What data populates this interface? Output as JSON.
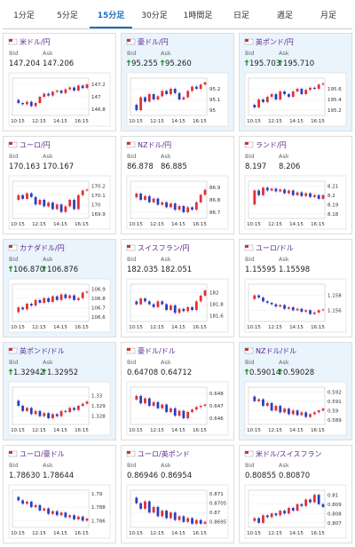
{
  "tabs": [
    "1分足",
    "5分足",
    "15分足",
    "30分足",
    "1時間足",
    "日足",
    "週足",
    "月足"
  ],
  "active_tab": 2,
  "bid_label": "Bid",
  "ask_label": "Ask",
  "time_labels": [
    "10:15",
    "12:15",
    "14:15",
    "16:15"
  ],
  "up_color": "#e0303a",
  "down_color": "#2a3fc0",
  "pairs": [
    {
      "name": "米ドル/円",
      "bid": "147.204",
      "ask": "147.206",
      "up": false,
      "chart": {
        "ylim": [
          146.7,
          147.3
        ],
        "yticks": [
          147.2,
          147,
          146.8
        ],
        "values": [
          146.95,
          146.9,
          146.88,
          146.92,
          146.85,
          146.9,
          147.0,
          147.05,
          147.02,
          147.08,
          147.1,
          147.06,
          147.12,
          147.15,
          147.1,
          147.18,
          147.14,
          147.2
        ]
      }
    },
    {
      "name": "豪ドル/円",
      "bid": "95.255",
      "ask": "95.260",
      "up": true,
      "chart": {
        "ylim": [
          94.95,
          95.3
        ],
        "yticks": [
          95.2,
          95.1,
          95
        ],
        "values": [
          95.05,
          95.0,
          95.12,
          95.08,
          95.15,
          95.1,
          95.13,
          95.18,
          95.15,
          95.2,
          95.16,
          95.1,
          95.12,
          95.18,
          95.22,
          95.2,
          95.24,
          95.26
        ]
      }
    },
    {
      "name": "英ポンド/円",
      "bid": "195.703",
      "ask": "195.710",
      "up": true,
      "chart": {
        "ylim": [
          195.1,
          195.8
        ],
        "yticks": [
          195.6,
          195.4,
          195.2
        ],
        "values": [
          195.3,
          195.25,
          195.4,
          195.35,
          195.45,
          195.5,
          195.4,
          195.55,
          195.5,
          195.45,
          195.55,
          195.6,
          195.5,
          195.58,
          195.62,
          195.6,
          195.68,
          195.7
        ]
      }
    },
    {
      "name": "ユーロ/円",
      "bid": "170.163",
      "ask": "170.167",
      "up": false,
      "chart": {
        "ylim": [
          169.85,
          170.25
        ],
        "yticks": [
          170.2,
          170.1,
          170,
          169.9
        ],
        "values": [
          170.05,
          170.1,
          170.06,
          170.12,
          170.08,
          170.0,
          170.05,
          169.98,
          170.02,
          169.95,
          170.0,
          169.92,
          169.98,
          170.05,
          169.95,
          170.1,
          170.15,
          170.16
        ]
      }
    },
    {
      "name": "NZドル/円",
      "bid": "86.878",
      "ask": "86.885",
      "up": false,
      "chart": {
        "ylim": [
          86.65,
          86.95
        ],
        "yticks": [
          86.9,
          86.8,
          86.7
        ],
        "values": [
          86.82,
          86.85,
          86.8,
          86.83,
          86.78,
          86.81,
          86.76,
          86.78,
          86.74,
          86.77,
          86.72,
          86.75,
          86.7,
          86.74,
          86.72,
          86.78,
          86.84,
          86.88
        ]
      }
    },
    {
      "name": "ランド/円",
      "bid": "8.197",
      "ask": "8.206",
      "up": false,
      "chart": {
        "ylim": [
          8.175,
          8.215
        ],
        "yticks": [
          8.21,
          8.2,
          8.19,
          8.18
        ],
        "values": [
          8.19,
          8.205,
          8.2,
          8.208,
          8.205,
          8.207,
          8.204,
          8.206,
          8.202,
          8.205,
          8.2,
          8.203,
          8.199,
          8.202,
          8.198,
          8.2,
          8.196,
          8.2
        ]
      }
    },
    {
      "name": "カナダドル/円",
      "bid": "106.870",
      "ask": "106.876",
      "up": true,
      "chart": {
        "ylim": [
          106.55,
          106.95
        ],
        "yticks": [
          106.9,
          106.8,
          106.7,
          106.6
        ],
        "values": [
          106.65,
          106.7,
          106.68,
          106.74,
          106.72,
          106.78,
          106.75,
          106.8,
          106.76,
          106.82,
          106.78,
          106.84,
          106.8,
          106.83,
          106.78,
          106.8,
          106.86,
          106.87
        ]
      }
    },
    {
      "name": "スイスフラン/円",
      "bid": "182.035",
      "ask": "182.051",
      "up": false,
      "chart": {
        "ylim": [
          181.5,
          182.15
        ],
        "yticks": [
          182,
          181.8,
          181.6
        ],
        "values": [
          181.85,
          181.8,
          181.9,
          181.85,
          181.8,
          181.75,
          181.85,
          181.8,
          181.7,
          181.78,
          181.65,
          181.72,
          181.68,
          181.75,
          181.7,
          181.85,
          181.95,
          182.04
        ]
      }
    },
    {
      "name": "ユーロ/ドル",
      "bid": "1.15595",
      "ask": "1.15598",
      "up": false,
      "chart": {
        "ylim": [
          1.1545,
          1.1595
        ],
        "yticks": [
          1.158,
          1.156
        ],
        "values": [
          1.1575,
          1.158,
          1.1577,
          1.1572,
          1.157,
          1.1568,
          1.1565,
          1.1567,
          1.1562,
          1.1564,
          1.156,
          1.1562,
          1.1558,
          1.156,
          1.1555,
          1.1557,
          1.156,
          1.1561
        ]
      }
    },
    {
      "name": "英ポンド/ドル",
      "bid": "1.32942",
      "ask": "1.32952",
      "up": true,
      "chart": {
        "ylim": [
          1.3272,
          1.3308
        ],
        "yticks": [
          1.33,
          1.329,
          1.328
        ],
        "values": [
          1.3295,
          1.329,
          1.3285,
          1.3288,
          1.3282,
          1.3285,
          1.328,
          1.3283,
          1.3278,
          1.3282,
          1.328,
          1.3285,
          1.3284,
          1.3288,
          1.3286,
          1.329,
          1.3292,
          1.3294
        ]
      }
    },
    {
      "name": "豪ドル/ドル",
      "bid": "0.64708",
      "ask": "0.64712",
      "up": false,
      "chart": {
        "ylim": [
          0.6455,
          0.6485
        ],
        "yticks": [
          0.648,
          0.647,
          0.646
        ],
        "values": [
          0.6475,
          0.6478,
          0.6472,
          0.6476,
          0.647,
          0.6473,
          0.6468,
          0.6471,
          0.6465,
          0.6468,
          0.6462,
          0.6466,
          0.646,
          0.6465,
          0.6467,
          0.6469,
          0.647,
          0.6471
        ]
      }
    },
    {
      "name": "NZドル/ドル",
      "bid": "0.59014",
      "ask": "0.59028",
      "up": true,
      "chart": {
        "ylim": [
          0.5885,
          0.5925
        ],
        "yticks": [
          0.592,
          0.591,
          0.59,
          0.589
        ],
        "values": [
          0.5915,
          0.591,
          0.5912,
          0.5905,
          0.5908,
          0.59,
          0.5905,
          0.5898,
          0.5902,
          0.5896,
          0.59,
          0.5895,
          0.5898,
          0.5893,
          0.5896,
          0.5898,
          0.59,
          0.5902
        ]
      }
    },
    {
      "name": "ユーロ/豪ドル",
      "bid": "1.78630",
      "ask": "1.78644",
      "up": false,
      "chart": {
        "ylim": [
          1.785,
          1.7905
        ],
        "yticks": [
          1.79,
          1.788,
          1.786
        ],
        "values": [
          1.7895,
          1.789,
          1.7885,
          1.7888,
          1.788,
          1.7883,
          1.7875,
          1.7878,
          1.787,
          1.7874,
          1.7868,
          1.7872,
          1.7865,
          1.7868,
          1.7862,
          1.7866,
          1.786,
          1.7863
        ]
      }
    },
    {
      "name": "ユーロ/英ポンド",
      "bid": "0.86946",
      "ask": "0.86954",
      "up": false,
      "chart": {
        "ylim": [
          0.8692,
          0.8712
        ],
        "yticks": [
          0.871,
          0.8705,
          0.87,
          0.8695
        ],
        "values": [
          0.8708,
          0.8705,
          0.8702,
          0.8706,
          0.87,
          0.8703,
          0.8698,
          0.8701,
          0.8697,
          0.87,
          0.8696,
          0.8698,
          0.8695,
          0.8697,
          0.8694,
          0.8696,
          0.8694,
          0.8695
        ]
      }
    },
    {
      "name": "米ドル/スイスフラン",
      "bid": "0.80855",
      "ask": "0.80870",
      "up": false,
      "chart": {
        "ylim": [
          0.8065,
          0.8105
        ],
        "yticks": [
          0.81,
          0.809,
          0.808,
          0.807
        ],
        "values": [
          0.8072,
          0.8075,
          0.807,
          0.8078,
          0.8076,
          0.808,
          0.8078,
          0.8083,
          0.808,
          0.8086,
          0.8083,
          0.809,
          0.8088,
          0.8095,
          0.8092,
          0.81,
          0.809,
          0.8087
        ]
      }
    }
  ]
}
